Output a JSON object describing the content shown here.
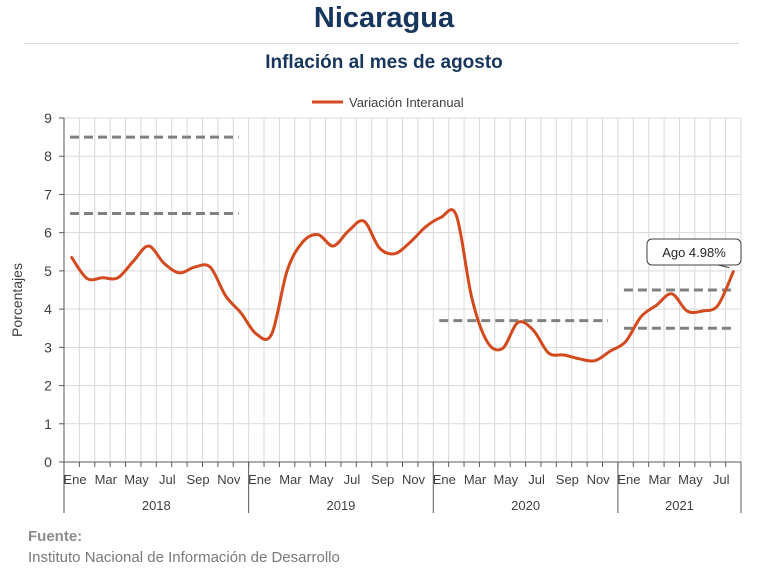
{
  "title": "Nicaragua",
  "subtitle": "Inflación al mes de agosto",
  "source_label": "Fuente:",
  "source_text": "Instituto Nacional de Información de  Desarrollo",
  "chart_data": {
    "type": "line",
    "ylabel": "Porcentajes",
    "ylim": [
      0,
      9
    ],
    "yticks": [
      0,
      1,
      2,
      3,
      4,
      5,
      6,
      7,
      8,
      9
    ],
    "grid": true,
    "legend": "top-center",
    "x_month_labels": [
      "Ene",
      "Mar",
      "May",
      "Jul",
      "Sep",
      "Nov",
      "Ene",
      "Mar",
      "May",
      "Jul",
      "Sep",
      "Nov",
      "Ene",
      "Mar",
      "May",
      "Jul",
      "Sep",
      "Nov",
      "Ene",
      "Mar",
      "May",
      "Jul"
    ],
    "years": [
      "2018",
      "2019",
      "2020",
      "2021"
    ],
    "series": [
      {
        "name": "Variación Interanual",
        "color": "#d24a1e",
        "values": [
          5.35,
          4.8,
          4.82,
          4.82,
          5.25,
          5.65,
          5.2,
          4.95,
          5.1,
          5.1,
          4.35,
          3.9,
          3.35,
          3.35,
          5.0,
          5.75,
          5.95,
          5.65,
          6.05,
          6.3,
          5.6,
          5.45,
          5.75,
          6.15,
          6.4,
          6.45,
          4.3,
          3.15,
          2.97,
          3.65,
          3.45,
          2.85,
          2.8,
          2.7,
          2.65,
          2.9,
          3.15,
          3.8,
          4.1,
          4.4,
          3.95,
          3.95,
          4.1,
          4.98
        ]
      }
    ],
    "reference_lines": [
      {
        "from_index": 0,
        "to_index": 11,
        "y": 8.5,
        "color": "#808080"
      },
      {
        "from_index": 0,
        "to_index": 11,
        "y": 6.5,
        "color": "#808080"
      },
      {
        "from_index": 24,
        "to_index": 35,
        "y": 3.7,
        "color": "#808080"
      },
      {
        "from_index": 36,
        "to_index": 43,
        "y": 4.5,
        "color": "#808080"
      },
      {
        "from_index": 36,
        "to_index": 43,
        "y": 3.5,
        "color": "#808080"
      }
    ],
    "annotation": {
      "index": 43,
      "text": "Ago 4.98%"
    }
  }
}
